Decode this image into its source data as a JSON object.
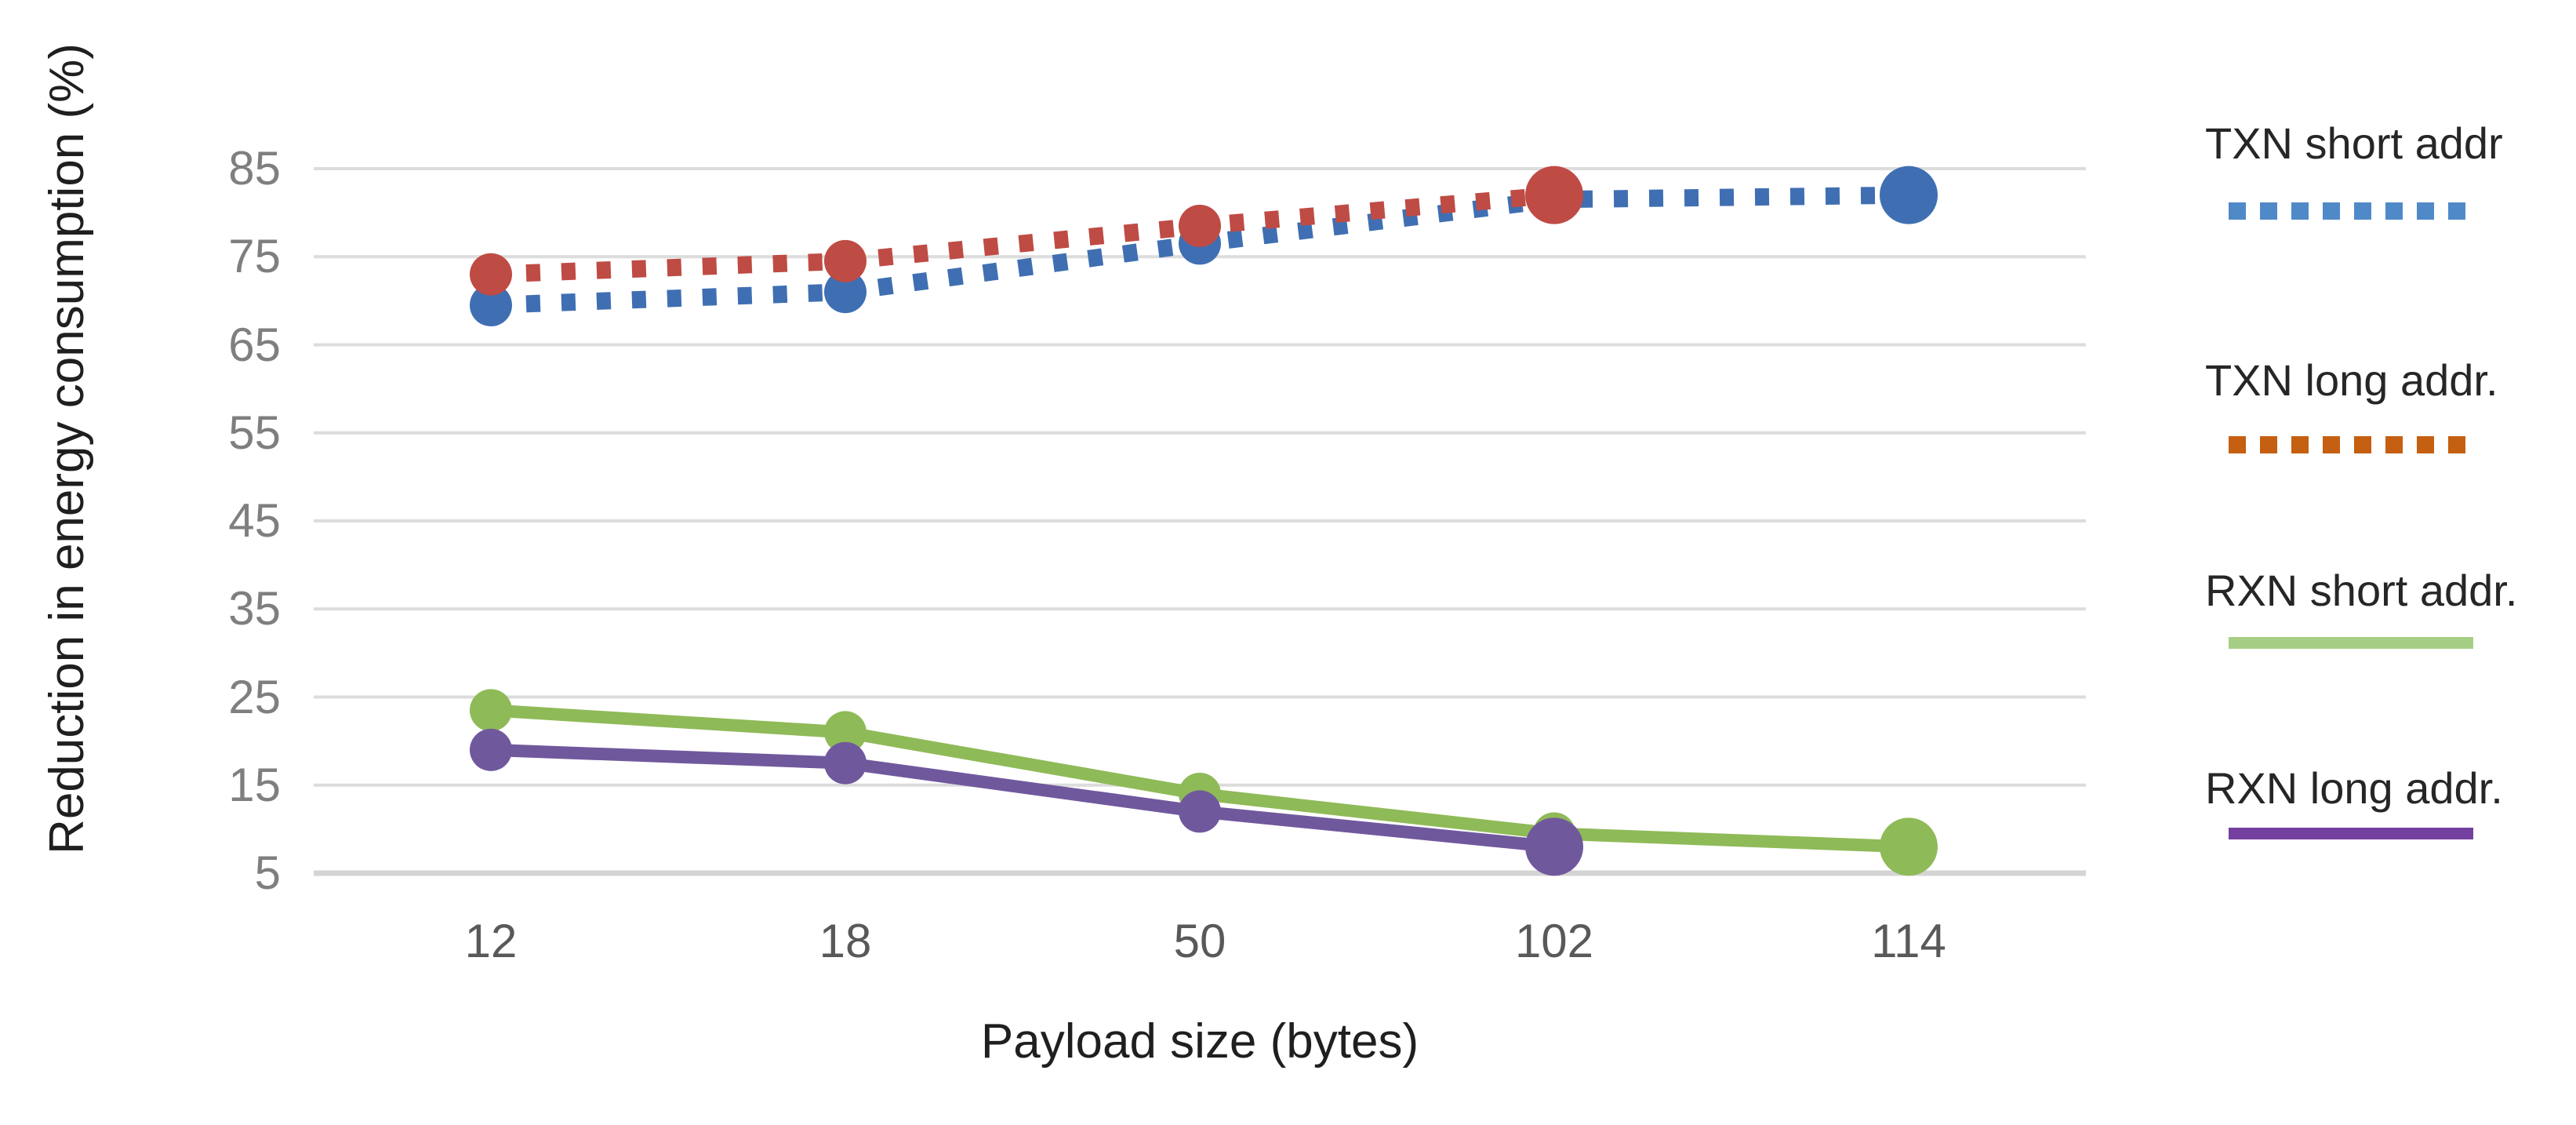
{
  "chart_data": {
    "type": "line",
    "title": "",
    "xlabel": "Payload size (bytes)",
    "ylabel": "Reduction in energy consumption (%)",
    "categories": [
      "12",
      "18",
      "50",
      "102",
      "114"
    ],
    "y_ticks": [
      5,
      15,
      25,
      35,
      45,
      55,
      65,
      75,
      85
    ],
    "ylim": [
      5,
      85
    ],
    "grid": true,
    "grid_color": "#dcdcdc",
    "legend_position": "right",
    "series": [
      {
        "name": "TXN short addr",
        "style": "dotted",
        "line_color": "#3f6fb2",
        "legend_color": "#5089c8",
        "values": [
          69.5,
          71,
          76.5,
          81.5,
          82
        ]
      },
      {
        "name": "TXN long addr.",
        "style": "dotted",
        "line_color": "#bf4b45",
        "legend_color": "#c55f11",
        "values": [
          73,
          74.5,
          78.5,
          82,
          null
        ]
      },
      {
        "name": "RXN short addr.",
        "style": "solid",
        "line_color": "#8fba58",
        "legend_color": "#a6ce84",
        "values": [
          23.5,
          21,
          14,
          9.5,
          8
        ]
      },
      {
        "name": "RXN long addr.",
        "style": "solid",
        "line_color": "#70589d",
        "legend_color": "#7340a0",
        "values": [
          19,
          17.5,
          12,
          8,
          null
        ]
      }
    ]
  }
}
